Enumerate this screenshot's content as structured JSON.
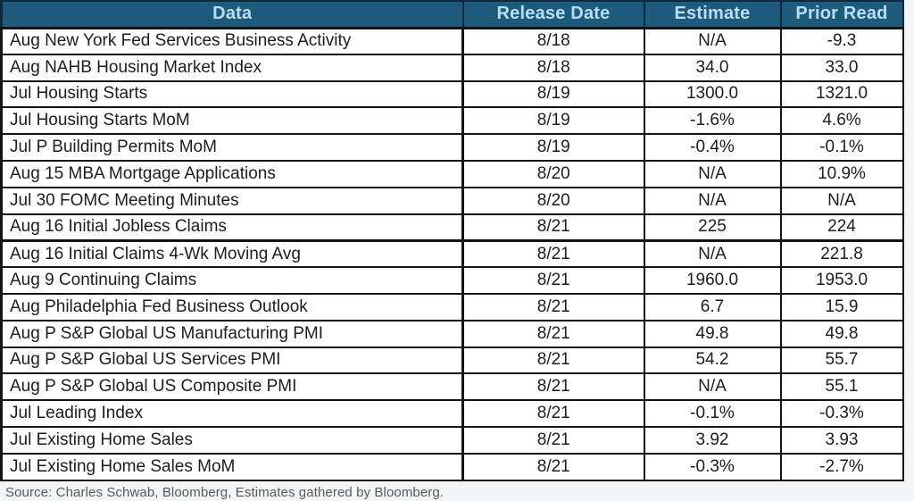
{
  "chart_data": {
    "type": "table",
    "columns": [
      "Data",
      "Release Date",
      "Estimate",
      "Prior Read"
    ],
    "rows": [
      [
        "Aug New York Fed Services Business Activity",
        "8/18",
        "N/A",
        "-9.3"
      ],
      [
        "Aug NAHB Housing Market Index",
        "8/18",
        "34.0",
        "33.0"
      ],
      [
        "Jul Housing Starts",
        "8/19",
        "1300.0",
        "1321.0"
      ],
      [
        "Jul Housing Starts MoM",
        "8/19",
        "-1.6%",
        "4.6%"
      ],
      [
        "Jul P Building Permits MoM",
        "8/19",
        "-0.4%",
        "-0.1%"
      ],
      [
        "Aug 15 MBA Mortgage Applications",
        "8/20",
        "N/A",
        "10.9%"
      ],
      [
        "Jul 30 FOMC Meeting Minutes",
        "8/20",
        "N/A",
        "N/A"
      ],
      [
        "Aug 16 Initial Jobless Claims",
        "8/21",
        "225",
        "224"
      ],
      [
        "Aug 16 Initial Claims 4-Wk Moving Avg",
        "8/21",
        "N/A",
        "221.8"
      ],
      [
        "Aug 9 Continuing Claims",
        "8/21",
        "1960.0",
        "1953.0"
      ],
      [
        "Aug Philadelphia Fed Business Outlook",
        "8/21",
        "6.7",
        "15.9"
      ],
      [
        "Aug P S&P Global US Manufacturing PMI",
        "8/21",
        "49.8",
        "49.8"
      ],
      [
        "Aug P S&P Global US Services PMI",
        "8/21",
        "54.2",
        "55.7"
      ],
      [
        "Aug P S&P Global US Composite PMI",
        "8/21",
        "N/A",
        "55.1"
      ],
      [
        "Jul Leading Index",
        "8/21",
        "-0.1%",
        "-0.3%"
      ],
      [
        "Jul Existing Home Sales",
        "8/21",
        "3.92",
        "3.93"
      ],
      [
        "Jul Existing Home Sales MoM",
        "8/21",
        "-0.3%",
        "-2.7%"
      ]
    ],
    "source": "Source: Charles Schwab, Bloomberg, Estimates gathered by Bloomberg."
  },
  "colors": {
    "header_bg": "#1e5a7c",
    "header_text": "#b6dff4",
    "grid": "#141414",
    "footer_text": "#5a5a5a"
  }
}
